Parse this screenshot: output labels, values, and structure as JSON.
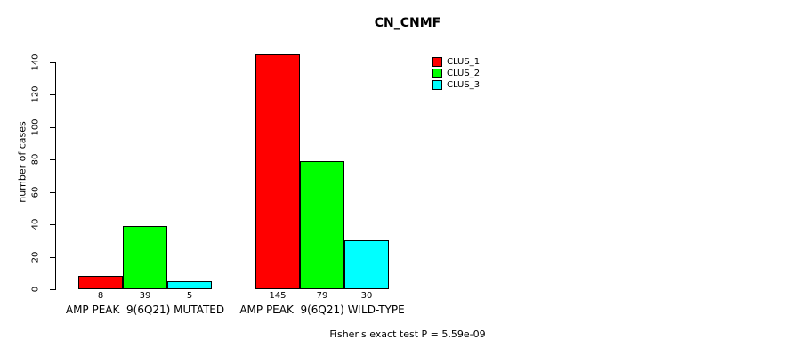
{
  "title": "CN_CNMF",
  "footer": "Fisher's exact test P = 5.59e-09",
  "y_axis": {
    "label": "number of cases",
    "ticks": [
      0,
      20,
      40,
      60,
      80,
      100,
      120,
      140
    ]
  },
  "chart_data": {
    "type": "bar",
    "title": "CN_CNMF",
    "xlabel": "",
    "ylabel": "number of cases",
    "ylim": [
      0,
      140
    ],
    "yticks": [
      0,
      20,
      40,
      60,
      80,
      100,
      120,
      140
    ],
    "grid": false,
    "legend_position": "top-right",
    "categories": [
      "AMP PEAK  9(6Q21) MUTATED",
      "AMP PEAK  9(6Q21) WILD-TYPE"
    ],
    "series": [
      {
        "name": "CLUS_1",
        "color": "#ff0000",
        "values": [
          8,
          145
        ]
      },
      {
        "name": "CLUS_2",
        "color": "#00ff00",
        "values": [
          39,
          79
        ]
      },
      {
        "name": "CLUS_3",
        "color": "#00ffff",
        "values": [
          5,
          30
        ]
      }
    ],
    "bar_value_labels": [
      [
        8,
        39,
        5
      ],
      [
        145,
        79,
        30
      ]
    ],
    "annotation": "Fisher's exact test P = 5.59e-09"
  }
}
